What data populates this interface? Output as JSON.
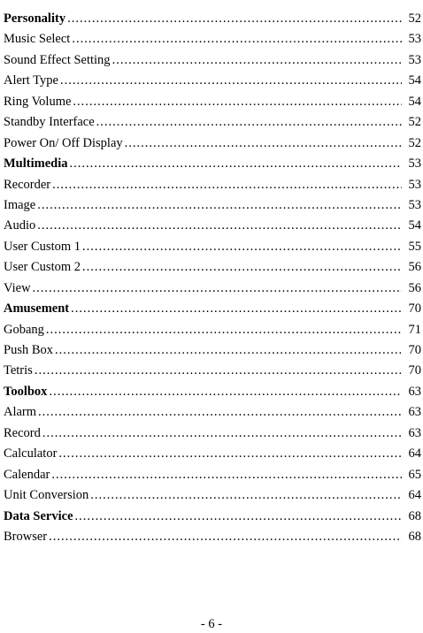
{
  "toc": [
    {
      "title": "Personality",
      "page": "52",
      "bold": true
    },
    {
      "title": "Music Select",
      "page": "53",
      "bold": false
    },
    {
      "title": "Sound Effect Setting",
      "page": "53",
      "bold": false
    },
    {
      "title": "Alert Type",
      "page": "54",
      "bold": false
    },
    {
      "title": "Ring Volume",
      "page": "54",
      "bold": false
    },
    {
      "title": "Standby Interface",
      "page": "52",
      "bold": false
    },
    {
      "title": "Power On/ Off Display",
      "page": "52",
      "bold": false
    },
    {
      "title": "Multimedia",
      "page": "53",
      "bold": true
    },
    {
      "title": "Recorder",
      "page": "53",
      "bold": false
    },
    {
      "title": "Image",
      "page": "53",
      "bold": false
    },
    {
      "title": "Audio",
      "page": "54",
      "bold": false
    },
    {
      "title": "User Custom 1",
      "page": "55",
      "bold": false
    },
    {
      "title": "User Custom 2",
      "page": "56",
      "bold": false
    },
    {
      "title": "View",
      "page": "56",
      "bold": false
    },
    {
      "title": "Amusement",
      "page": "70",
      "bold": true
    },
    {
      "title": "Gobang",
      "page": "71",
      "bold": false
    },
    {
      "title": "Push Box",
      "page": "70",
      "bold": false
    },
    {
      "title": "Tetris",
      "page": "70",
      "bold": false
    },
    {
      "title": "Toolbox",
      "page": "63",
      "bold": true
    },
    {
      "title": "Alarm",
      "page": "63",
      "bold": false
    },
    {
      "title": "Record",
      "page": "63",
      "bold": false
    },
    {
      "title": "Calculator",
      "page": "64",
      "bold": false
    },
    {
      "title": "Calendar",
      "page": "65",
      "bold": false
    },
    {
      "title": "Unit  Conversion",
      "page": "64",
      "bold": false
    },
    {
      "title": "Data Service",
      "page": "68",
      "bold": true
    },
    {
      "title": "Browser",
      "page": "68",
      "bold": false
    }
  ],
  "footer": {
    "page_number": "- 6 -"
  }
}
